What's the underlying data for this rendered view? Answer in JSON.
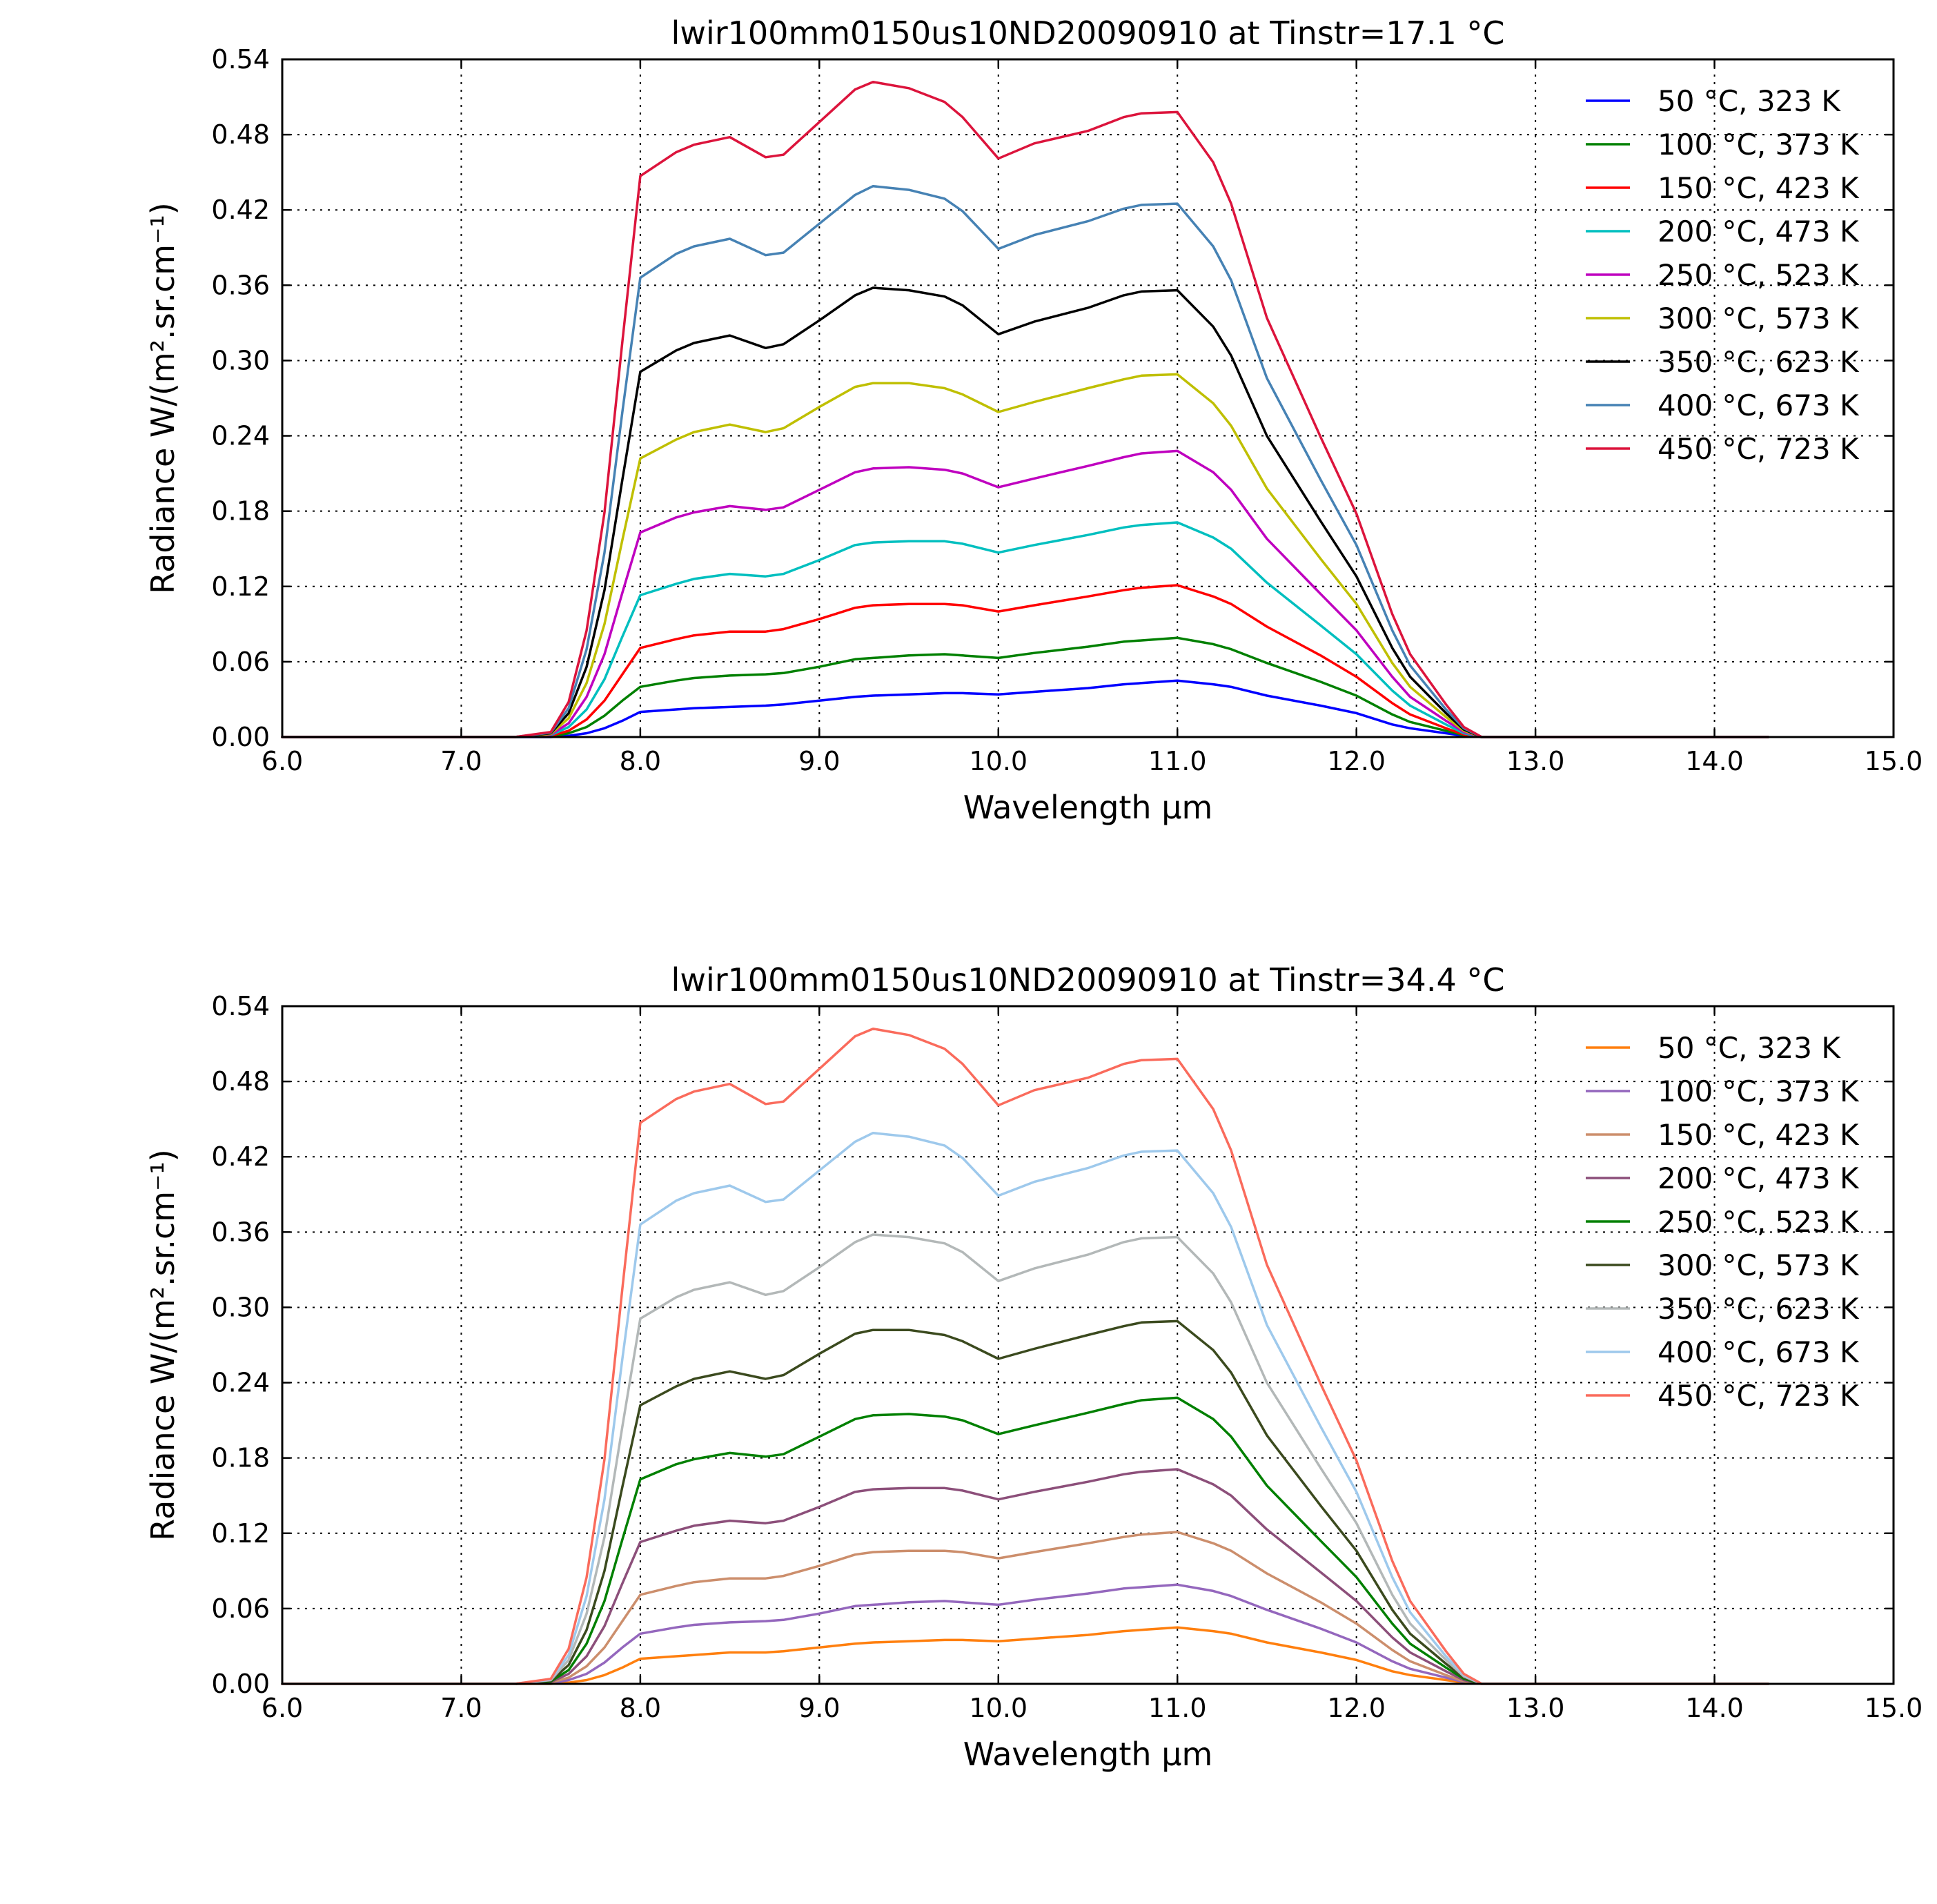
{
  "chart_data": [
    {
      "type": "line",
      "title": "lwir100mm0150us10ND20090910 at Tinstr=17.1 °C",
      "xlabel": "Wavelength μm",
      "ylabel": "Radiance W/(m².sr.cm⁻¹)",
      "xlim": [
        6.0,
        15.0
      ],
      "ylim": [
        0.0,
        0.54
      ],
      "xticks": [
        6.0,
        7.0,
        8.0,
        9.0,
        10.0,
        11.0,
        12.0,
        13.0,
        14.0,
        15.0
      ],
      "xtick_labels": [
        "6.0",
        "7.0",
        "8.0",
        "9.0",
        "10.0",
        "11.0",
        "12.0",
        "13.0",
        "14.0",
        "15.0"
      ],
      "yticks": [
        0.0,
        0.06,
        0.12,
        0.18,
        0.24,
        0.3,
        0.36,
        0.42,
        0.48,
        0.54
      ],
      "ytick_labels": [
        "0.00",
        "0.06",
        "0.12",
        "0.18",
        "0.24",
        "0.30",
        "0.36",
        "0.42",
        "0.48",
        "0.54"
      ],
      "grid": true,
      "legend_position": "top-right",
      "x": [
        6.0,
        7.0,
        7.3,
        7.5,
        7.6,
        7.7,
        7.8,
        7.9,
        8.0,
        8.2,
        8.3,
        8.5,
        8.7,
        8.8,
        9.0,
        9.2,
        9.3,
        9.5,
        9.7,
        9.8,
        10.0,
        10.2,
        10.5,
        10.7,
        10.8,
        11.0,
        11.2,
        11.3,
        11.5,
        11.8,
        12.0,
        12.2,
        12.3,
        12.5,
        12.6,
        12.7,
        13.0,
        14.0,
        14.3
      ],
      "series": [
        {
          "name": "50 °C, 323 K",
          "color": "#0000ff",
          "values": [
            0.0,
            0.0,
            0.0,
            0.0,
            0.001,
            0.003,
            0.007,
            0.013,
            0.02,
            0.022,
            0.023,
            0.024,
            0.025,
            0.026,
            0.029,
            0.032,
            0.033,
            0.034,
            0.035,
            0.035,
            0.034,
            0.036,
            0.039,
            0.042,
            0.043,
            0.045,
            0.042,
            0.04,
            0.033,
            0.025,
            0.019,
            0.01,
            0.007,
            0.003,
            0.001,
            0.0,
            0.0,
            0.0,
            0.0
          ]
        },
        {
          "name": "100 °C, 373 K",
          "color": "#008000",
          "values": [
            0.0,
            0.0,
            0.0,
            0.0005,
            0.003,
            0.008,
            0.017,
            0.029,
            0.04,
            0.045,
            0.047,
            0.049,
            0.05,
            0.051,
            0.056,
            0.062,
            0.063,
            0.065,
            0.066,
            0.065,
            0.063,
            0.067,
            0.072,
            0.076,
            0.077,
            0.079,
            0.074,
            0.07,
            0.059,
            0.044,
            0.033,
            0.018,
            0.012,
            0.005,
            0.0015,
            0.0,
            0.0,
            0.0,
            0.0
          ]
        },
        {
          "name": "150 °C, 423 K",
          "color": "#ff0000",
          "values": [
            0.0,
            0.0,
            0.0,
            0.001,
            0.005,
            0.014,
            0.029,
            0.05,
            0.071,
            0.078,
            0.081,
            0.084,
            0.084,
            0.086,
            0.094,
            0.103,
            0.105,
            0.106,
            0.106,
            0.105,
            0.1,
            0.105,
            0.112,
            0.117,
            0.119,
            0.121,
            0.112,
            0.106,
            0.088,
            0.065,
            0.048,
            0.027,
            0.018,
            0.007,
            0.002,
            0.0,
            0.0,
            0.0,
            0.0
          ]
        },
        {
          "name": "200 °C, 473 K",
          "color": "#00bfbf",
          "values": [
            0.0,
            0.0,
            0.0,
            0.0015,
            0.008,
            0.022,
            0.046,
            0.08,
            0.113,
            0.122,
            0.126,
            0.13,
            0.128,
            0.13,
            0.141,
            0.153,
            0.155,
            0.156,
            0.156,
            0.154,
            0.147,
            0.153,
            0.161,
            0.167,
            0.169,
            0.171,
            0.159,
            0.15,
            0.123,
            0.089,
            0.066,
            0.037,
            0.025,
            0.01,
            0.003,
            0.0,
            0.0,
            0.0,
            0.0
          ]
        },
        {
          "name": "250 °C, 523 K",
          "color": "#bf00bf",
          "values": [
            0.0,
            0.0,
            0.0,
            0.002,
            0.011,
            0.032,
            0.066,
            0.115,
            0.163,
            0.175,
            0.179,
            0.184,
            0.181,
            0.183,
            0.197,
            0.211,
            0.214,
            0.215,
            0.213,
            0.21,
            0.199,
            0.206,
            0.216,
            0.223,
            0.226,
            0.228,
            0.211,
            0.197,
            0.158,
            0.114,
            0.085,
            0.048,
            0.032,
            0.013,
            0.004,
            0.0,
            0.0,
            0.0,
            0.0
          ]
        },
        {
          "name": "300 °C, 573 K",
          "color": "#bfbf00",
          "values": [
            0.0,
            0.0,
            0.0,
            0.0025,
            0.015,
            0.043,
            0.09,
            0.157,
            0.222,
            0.237,
            0.243,
            0.249,
            0.243,
            0.246,
            0.263,
            0.279,
            0.282,
            0.282,
            0.278,
            0.273,
            0.259,
            0.267,
            0.278,
            0.285,
            0.288,
            0.289,
            0.266,
            0.248,
            0.198,
            0.142,
            0.106,
            0.059,
            0.04,
            0.016,
            0.005,
            0.0,
            0.0,
            0.0,
            0.0
          ]
        },
        {
          "name": "350 °C, 623 K",
          "color": "#000000",
          "values": [
            0.0,
            0.0,
            0.0,
            0.003,
            0.019,
            0.056,
            0.117,
            0.205,
            0.291,
            0.308,
            0.314,
            0.32,
            0.31,
            0.313,
            0.332,
            0.352,
            0.358,
            0.356,
            0.351,
            0.344,
            0.321,
            0.331,
            0.342,
            0.352,
            0.355,
            0.356,
            0.327,
            0.304,
            0.24,
            0.172,
            0.128,
            0.071,
            0.048,
            0.019,
            0.006,
            0.0,
            0.0,
            0.0,
            0.0
          ]
        },
        {
          "name": "400 °C, 673 K",
          "color": "#4682b4",
          "values": [
            0.0,
            0.0,
            0.0,
            0.0035,
            0.023,
            0.07,
            0.147,
            0.259,
            0.366,
            0.385,
            0.391,
            0.397,
            0.384,
            0.386,
            0.409,
            0.432,
            0.439,
            0.436,
            0.429,
            0.419,
            0.389,
            0.4,
            0.411,
            0.421,
            0.424,
            0.425,
            0.391,
            0.364,
            0.286,
            0.205,
            0.153,
            0.085,
            0.057,
            0.022,
            0.007,
            0.0,
            0.0,
            0.0,
            0.0
          ]
        },
        {
          "name": "450 °C, 723 K",
          "color": "#dc143c",
          "values": [
            0.0,
            0.0,
            0.0,
            0.004,
            0.028,
            0.085,
            0.179,
            0.315,
            0.447,
            0.466,
            0.472,
            0.478,
            0.462,
            0.464,
            0.49,
            0.516,
            0.522,
            0.517,
            0.506,
            0.494,
            0.461,
            0.473,
            0.483,
            0.494,
            0.497,
            0.498,
            0.458,
            0.425,
            0.334,
            0.239,
            0.178,
            0.098,
            0.066,
            0.026,
            0.008,
            0.0,
            0.0,
            0.0,
            0.0
          ]
        }
      ]
    },
    {
      "type": "line",
      "title": "lwir100mm0150us10ND20090910 at Tinstr=34.4 °C",
      "xlabel": "Wavelength μm",
      "ylabel": "Radiance W/(m².sr.cm⁻¹)",
      "xlim": [
        6.0,
        15.0
      ],
      "ylim": [
        0.0,
        0.54
      ],
      "xticks": [
        6.0,
        7.0,
        8.0,
        9.0,
        10.0,
        11.0,
        12.0,
        13.0,
        14.0,
        15.0
      ],
      "xtick_labels": [
        "6.0",
        "7.0",
        "8.0",
        "9.0",
        "10.0",
        "11.0",
        "12.0",
        "13.0",
        "14.0",
        "15.0"
      ],
      "yticks": [
        0.0,
        0.06,
        0.12,
        0.18,
        0.24,
        0.3,
        0.36,
        0.42,
        0.48,
        0.54
      ],
      "ytick_labels": [
        "0.00",
        "0.06",
        "0.12",
        "0.18",
        "0.24",
        "0.30",
        "0.36",
        "0.42",
        "0.48",
        "0.54"
      ],
      "grid": true,
      "legend_position": "top-right",
      "x": [
        6.0,
        7.0,
        7.3,
        7.5,
        7.6,
        7.7,
        7.8,
        7.9,
        8.0,
        8.2,
        8.3,
        8.5,
        8.7,
        8.8,
        9.0,
        9.2,
        9.3,
        9.5,
        9.7,
        9.8,
        10.0,
        10.2,
        10.5,
        10.7,
        10.8,
        11.0,
        11.2,
        11.3,
        11.5,
        11.8,
        12.0,
        12.2,
        12.3,
        12.5,
        12.6,
        12.7,
        13.0,
        14.0,
        14.3
      ],
      "series": [
        {
          "name": "50 °C, 323 K",
          "color": "#ff7f0e",
          "values": [
            0.0,
            0.0,
            0.0,
            0.0,
            0.001,
            0.003,
            0.007,
            0.013,
            0.02,
            0.022,
            0.023,
            0.025,
            0.025,
            0.026,
            0.029,
            0.032,
            0.033,
            0.034,
            0.035,
            0.035,
            0.034,
            0.036,
            0.039,
            0.042,
            0.043,
            0.045,
            0.042,
            0.04,
            0.033,
            0.025,
            0.019,
            0.01,
            0.007,
            0.003,
            0.001,
            0.0,
            0.0,
            0.0,
            0.0
          ]
        },
        {
          "name": "100 °C, 373 K",
          "color": "#9467bd",
          "values": [
            0.0,
            0.0,
            0.0,
            0.0005,
            0.003,
            0.008,
            0.017,
            0.029,
            0.04,
            0.045,
            0.047,
            0.049,
            0.05,
            0.051,
            0.056,
            0.062,
            0.063,
            0.065,
            0.066,
            0.065,
            0.063,
            0.067,
            0.072,
            0.076,
            0.077,
            0.079,
            0.074,
            0.07,
            0.059,
            0.044,
            0.033,
            0.018,
            0.012,
            0.005,
            0.0015,
            0.0,
            0.0,
            0.0,
            0.0
          ]
        },
        {
          "name": "150 °C, 423 K",
          "color": "#cc8e6c",
          "values": [
            0.0,
            0.0,
            0.0,
            0.001,
            0.005,
            0.014,
            0.029,
            0.05,
            0.071,
            0.078,
            0.081,
            0.084,
            0.084,
            0.086,
            0.094,
            0.103,
            0.105,
            0.106,
            0.106,
            0.105,
            0.1,
            0.105,
            0.112,
            0.117,
            0.119,
            0.121,
            0.112,
            0.106,
            0.088,
            0.065,
            0.048,
            0.027,
            0.018,
            0.007,
            0.002,
            0.0,
            0.0,
            0.0,
            0.0
          ]
        },
        {
          "name": "200 °C, 473 K",
          "color": "#8c4f7a",
          "values": [
            0.0,
            0.0,
            0.0,
            0.0015,
            0.008,
            0.022,
            0.046,
            0.08,
            0.113,
            0.122,
            0.126,
            0.13,
            0.128,
            0.13,
            0.141,
            0.153,
            0.155,
            0.156,
            0.156,
            0.154,
            0.147,
            0.153,
            0.161,
            0.167,
            0.169,
            0.171,
            0.159,
            0.15,
            0.123,
            0.089,
            0.066,
            0.037,
            0.025,
            0.01,
            0.003,
            0.0,
            0.0,
            0.0,
            0.0
          ]
        },
        {
          "name": "250 °C, 523 K",
          "color": "#008000",
          "values": [
            0.0,
            0.0,
            0.0,
            0.002,
            0.011,
            0.032,
            0.066,
            0.115,
            0.163,
            0.175,
            0.179,
            0.184,
            0.181,
            0.183,
            0.197,
            0.211,
            0.214,
            0.215,
            0.213,
            0.21,
            0.199,
            0.206,
            0.216,
            0.223,
            0.226,
            0.228,
            0.211,
            0.197,
            0.158,
            0.114,
            0.085,
            0.048,
            0.032,
            0.013,
            0.004,
            0.0,
            0.0,
            0.0,
            0.0
          ]
        },
        {
          "name": "300 °C, 573 K",
          "color": "#3b4a1e",
          "values": [
            0.0,
            0.0,
            0.0,
            0.0025,
            0.015,
            0.043,
            0.09,
            0.157,
            0.222,
            0.237,
            0.243,
            0.249,
            0.243,
            0.246,
            0.263,
            0.279,
            0.282,
            0.282,
            0.278,
            0.273,
            0.259,
            0.267,
            0.278,
            0.285,
            0.288,
            0.289,
            0.266,
            0.248,
            0.198,
            0.142,
            0.106,
            0.059,
            0.04,
            0.016,
            0.005,
            0.0,
            0.0,
            0.0,
            0.0
          ]
        },
        {
          "name": "350 °C, 623 K",
          "color": "#b3b8b8",
          "values": [
            0.0,
            0.0,
            0.0,
            0.003,
            0.019,
            0.056,
            0.117,
            0.205,
            0.291,
            0.308,
            0.314,
            0.32,
            0.31,
            0.313,
            0.332,
            0.352,
            0.358,
            0.356,
            0.351,
            0.344,
            0.321,
            0.331,
            0.342,
            0.352,
            0.355,
            0.356,
            0.327,
            0.304,
            0.24,
            0.172,
            0.128,
            0.071,
            0.048,
            0.019,
            0.006,
            0.0,
            0.0,
            0.0,
            0.0
          ]
        },
        {
          "name": "400 °C, 673 K",
          "color": "#9ec9ec",
          "values": [
            0.0,
            0.0,
            0.0,
            0.0035,
            0.023,
            0.07,
            0.147,
            0.259,
            0.366,
            0.385,
            0.391,
            0.397,
            0.384,
            0.386,
            0.409,
            0.432,
            0.439,
            0.436,
            0.429,
            0.419,
            0.389,
            0.4,
            0.411,
            0.421,
            0.424,
            0.425,
            0.391,
            0.364,
            0.286,
            0.205,
            0.153,
            0.085,
            0.057,
            0.022,
            0.007,
            0.0,
            0.0,
            0.0,
            0.0
          ]
        },
        {
          "name": "450 °C, 723 K",
          "color": "#fa6b5c",
          "values": [
            0.0,
            0.0,
            0.0,
            0.004,
            0.028,
            0.085,
            0.179,
            0.315,
            0.447,
            0.466,
            0.472,
            0.478,
            0.462,
            0.464,
            0.49,
            0.516,
            0.522,
            0.517,
            0.506,
            0.494,
            0.461,
            0.473,
            0.483,
            0.494,
            0.497,
            0.498,
            0.458,
            0.425,
            0.334,
            0.239,
            0.178,
            0.098,
            0.066,
            0.026,
            0.008,
            0.0,
            0.0,
            0.0,
            0.0
          ]
        }
      ]
    }
  ]
}
